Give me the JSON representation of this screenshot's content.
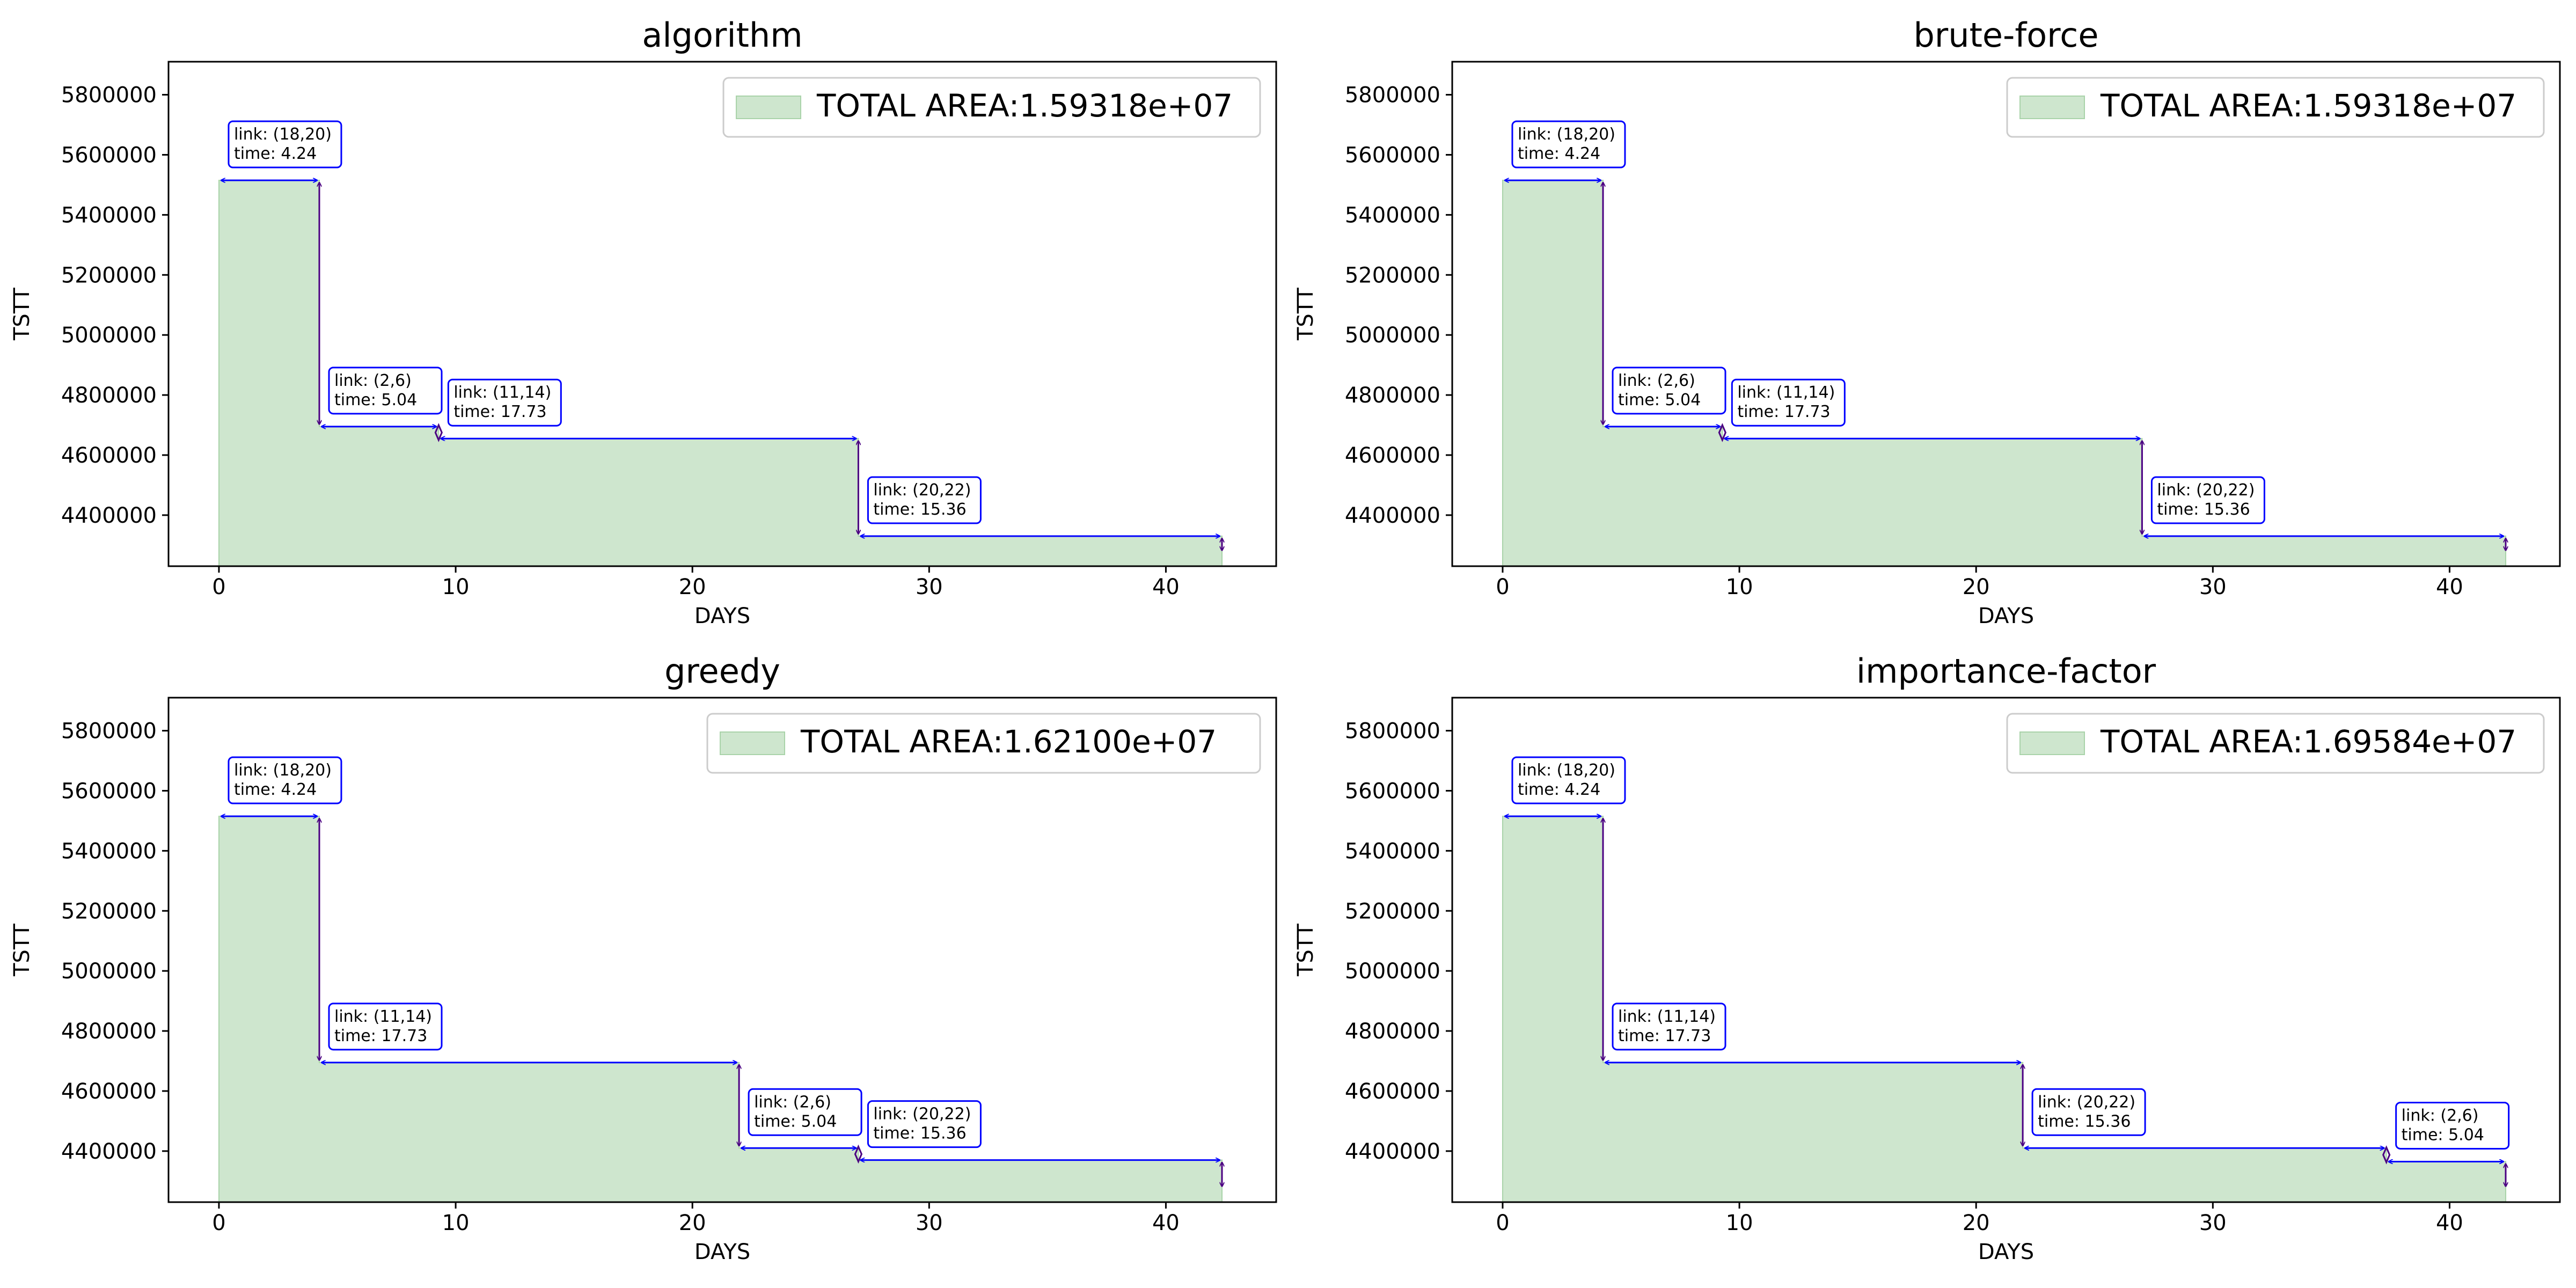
{
  "colors": {
    "fill": "#cee6ce",
    "fill_edge": "#a9d3a9",
    "arrow": "#0000ff",
    "drop": "#4b0082",
    "box_edge": "#0000ff",
    "axis": "#000000",
    "text": "#000000"
  },
  "shared": {
    "xlabel": "DAYS",
    "ylabel": "TSTT",
    "xticks": [
      0,
      10,
      20,
      30,
      40
    ],
    "yticks": [
      4400000,
      4600000,
      4800000,
      5000000,
      5200000,
      5400000,
      5600000,
      5800000
    ],
    "xlim": [
      -2.13,
      44.66
    ],
    "ylim": [
      4230000,
      5910000
    ],
    "legend_position": "top-right",
    "grid": false
  },
  "chart_data": [
    {
      "type": "area",
      "title": "algorithm",
      "legend_label": "TOTAL AREA:1.59318e+07",
      "initial_tstt": 5515000,
      "steps": [
        {
          "link": "(18,20)",
          "time": "4.24",
          "start": 0,
          "end": 4.24,
          "tstt_after": 4695000
        },
        {
          "link": "(2,6)",
          "time": "5.04",
          "start": 4.24,
          "end": 9.28,
          "tstt_after": 4655000
        },
        {
          "link": "(11,14)",
          "time": "17.73",
          "start": 9.28,
          "end": 27.01,
          "tstt_after": 4330000
        },
        {
          "link": "(20,22)",
          "time": "15.36",
          "start": 27.01,
          "end": 42.37,
          "tstt_after": 4275000
        }
      ]
    },
    {
      "type": "area",
      "title": "brute-force",
      "legend_label": "TOTAL AREA:1.59318e+07",
      "initial_tstt": 5515000,
      "steps": [
        {
          "link": "(18,20)",
          "time": "4.24",
          "start": 0,
          "end": 4.24,
          "tstt_after": 4695000
        },
        {
          "link": "(2,6)",
          "time": "5.04",
          "start": 4.24,
          "end": 9.28,
          "tstt_after": 4655000
        },
        {
          "link": "(11,14)",
          "time": "17.73",
          "start": 9.28,
          "end": 27.01,
          "tstt_after": 4330000
        },
        {
          "link": "(20,22)",
          "time": "15.36",
          "start": 27.01,
          "end": 42.37,
          "tstt_after": 4275000
        }
      ]
    },
    {
      "type": "area",
      "title": "greedy",
      "legend_label": "TOTAL AREA:1.62100e+07",
      "initial_tstt": 5515000,
      "steps": [
        {
          "link": "(18,20)",
          "time": "4.24",
          "start": 0,
          "end": 4.24,
          "tstt_after": 4695000
        },
        {
          "link": "(11,14)",
          "time": "17.73",
          "start": 4.24,
          "end": 21.97,
          "tstt_after": 4410000
        },
        {
          "link": "(2,6)",
          "time": "5.04",
          "start": 21.97,
          "end": 27.01,
          "tstt_after": 4370000
        },
        {
          "link": "(20,22)",
          "time": "15.36",
          "start": 27.01,
          "end": 42.37,
          "tstt_after": 4275000
        }
      ]
    },
    {
      "type": "area",
      "title": "importance-factor",
      "legend_label": "TOTAL AREA:1.69584e+07",
      "initial_tstt": 5515000,
      "steps": [
        {
          "link": "(18,20)",
          "time": "4.24",
          "start": 0,
          "end": 4.24,
          "tstt_after": 4695000
        },
        {
          "link": "(11,14)",
          "time": "17.73",
          "start": 4.24,
          "end": 21.97,
          "tstt_after": 4410000
        },
        {
          "link": "(20,22)",
          "time": "15.36",
          "start": 21.97,
          "end": 37.33,
          "tstt_after": 4365000
        },
        {
          "link": "(2,6)",
          "time": "5.04",
          "start": 37.33,
          "end": 42.37,
          "tstt_after": 4275000
        }
      ]
    }
  ]
}
